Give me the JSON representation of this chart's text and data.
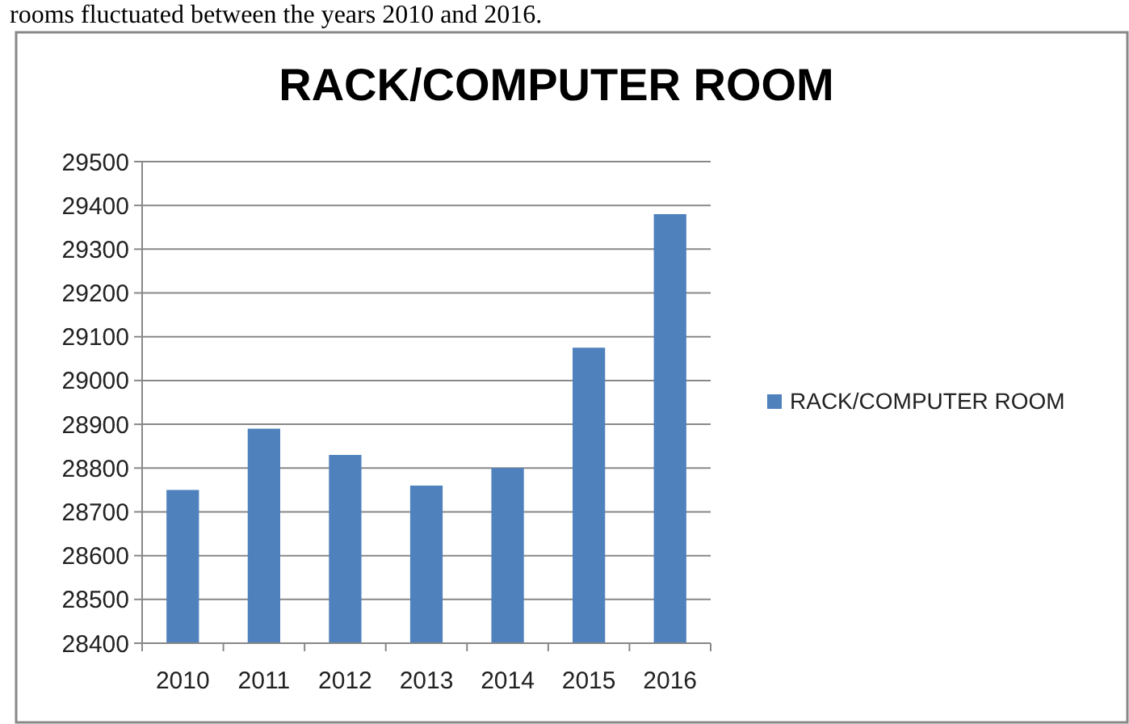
{
  "chart_data": {
    "type": "bar",
    "title": "RACK/COMPUTER ROOM",
    "annotations": [
      "rooms fluctuated between the years 2010 and 2016."
    ],
    "categories": [
      "2010",
      "2011",
      "2012",
      "2013",
      "2014",
      "2015",
      "2016"
    ],
    "series": [
      {
        "name": "RACK/COMPUTER ROOM",
        "color": "#4f81bd",
        "values": [
          28750,
          28890,
          28830,
          28760,
          28800,
          29075,
          29380
        ]
      }
    ],
    "ylim": [
      28400,
      29500
    ],
    "yticks": [
      28400,
      28500,
      28600,
      28700,
      28800,
      28900,
      29000,
      29100,
      29200,
      29300,
      29400,
      29500
    ],
    "grid": "y",
    "legend": "right"
  }
}
